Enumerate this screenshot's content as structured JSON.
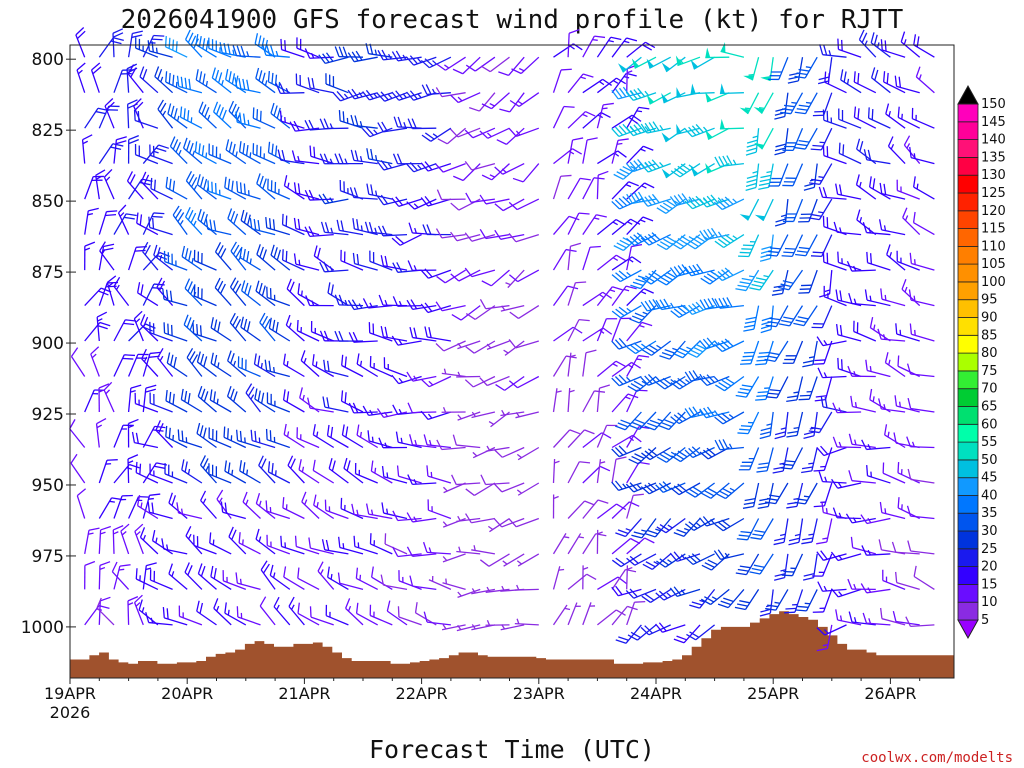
{
  "chart_data": {
    "type": "wind-barb-profile",
    "title": "2026041900 GFS forecast wind profile (kt) for RJTT",
    "xlabel": "Forecast Time (UTC)",
    "credit": "coolwx.com/modelts",
    "x_ticks": [
      "19APR",
      "20APR",
      "21APR",
      "22APR",
      "23APR",
      "24APR",
      "25APR",
      "26APR"
    ],
    "x_year": "2026",
    "x_range_hours": [
      0,
      180
    ],
    "x_step_hours": 3,
    "y_ticks": [
      800,
      825,
      850,
      875,
      900,
      925,
      950,
      975,
      1000
    ],
    "y_range_hpa": [
      795,
      1018
    ],
    "levels_hpa": [
      800,
      812.5,
      825,
      837.5,
      850,
      862.5,
      875,
      887.5,
      900,
      912.5,
      925,
      937.5,
      950,
      962.5,
      975,
      987.5,
      1000,
      1012.5
    ],
    "colorbar": {
      "labels": [
        "5",
        "10",
        "15",
        "20",
        "25",
        "30",
        "35",
        "40",
        "45",
        "50",
        "55",
        "60",
        "65",
        "70",
        "75",
        "80",
        "85",
        "90",
        "95",
        "100",
        "105",
        "110",
        "115",
        "120",
        "125",
        "130",
        "135",
        "140",
        "145",
        "150"
      ],
      "colors": [
        "#8a2be2",
        "#6a0dff",
        "#3300ff",
        "#1a1aee",
        "#0033dd",
        "#0055ee",
        "#0077ff",
        "#1199ff",
        "#00c0e0",
        "#00e0c0",
        "#00ffaa",
        "#00e070",
        "#00cc33",
        "#33ee33",
        "#aaff00",
        "#ffff00",
        "#ffe000",
        "#ffc000",
        "#ffa000",
        "#ff9000",
        "#ff7f00",
        "#ff6600",
        "#ff4400",
        "#ff2200",
        "#ff0000",
        "#ff0044",
        "#ff1177",
        "#ff0099",
        "#ff00bb",
        "#ee00ee"
      ],
      "min_color": "#9900ff",
      "max_color": "#000000"
    },
    "terrain_color": "#a0522d",
    "surface_pressure_hpa": [
      1011.5,
      1011.5,
      1010,
      1009,
      1011.5,
      1012.5,
      1013,
      1012,
      1012,
      1013,
      1013,
      1012.5,
      1012.5,
      1012,
      1010.5,
      1009.5,
      1009,
      1008,
      1006,
      1005,
      1006,
      1007,
      1007,
      1006,
      1006,
      1005.5,
      1007,
      1009,
      1011,
      1012,
      1012,
      1012,
      1012,
      1013,
      1013,
      1012.5,
      1012,
      1011.5,
      1011,
      1010,
      1009,
      1009,
      1010,
      1010.5,
      1010.5,
      1010.5,
      1010.5,
      1010.5,
      1011,
      1011.5,
      1011.5,
      1011.5,
      1011.5,
      1011.5,
      1011.5,
      1011.5,
      1013,
      1013,
      1013,
      1012.5,
      1012.5,
      1012,
      1011.5,
      1010,
      1007,
      1004,
      1001,
      1000,
      1000,
      1000,
      998.5,
      997,
      995.5,
      994.5,
      995.5,
      996.5,
      997.5,
      1000,
      1003,
      1006,
      1008,
      1008,
      1009,
      1010,
      1010,
      1010,
      1010,
      1010,
      1010,
      1010,
      1010
    ],
    "barbs_summary": "Wind barbs (kt) plotted every 3 h at each level; speeds mostly 5-50 kt, strongest (40-50 kt) at 800-900 hPa around 24-25 APR."
  }
}
